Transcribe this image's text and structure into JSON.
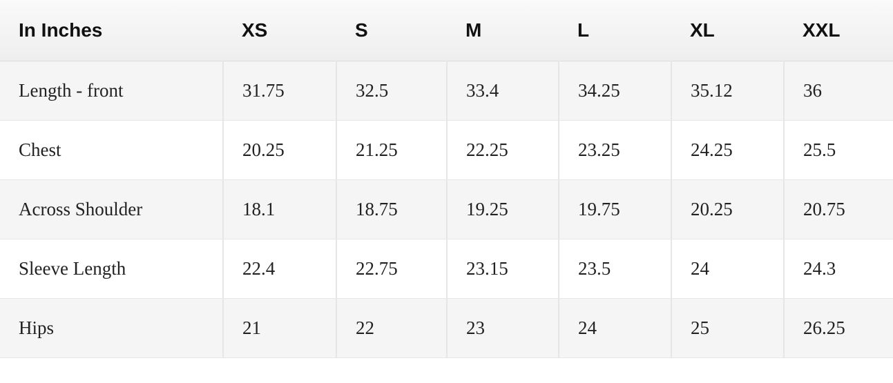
{
  "table": {
    "header": [
      "In Inches",
      "XS",
      "S",
      "M",
      "L",
      "XL",
      "XXL"
    ],
    "rows": [
      [
        "Length - front",
        "31.75",
        "32.5",
        "33.4",
        "34.25",
        "35.12",
        "36"
      ],
      [
        "Chest",
        "20.25",
        "21.25",
        "22.25",
        "23.25",
        "24.25",
        "25.5"
      ],
      [
        "Across Shoulder",
        "18.1",
        "18.75",
        "19.25",
        "19.75",
        "20.25",
        "20.75"
      ],
      [
        "Sleeve Length",
        "22.4",
        "22.75",
        "23.15",
        "23.5",
        "24",
        "24.3"
      ],
      [
        "Hips",
        "21",
        "22",
        "23",
        "24",
        "25",
        "26.25"
      ]
    ]
  }
}
